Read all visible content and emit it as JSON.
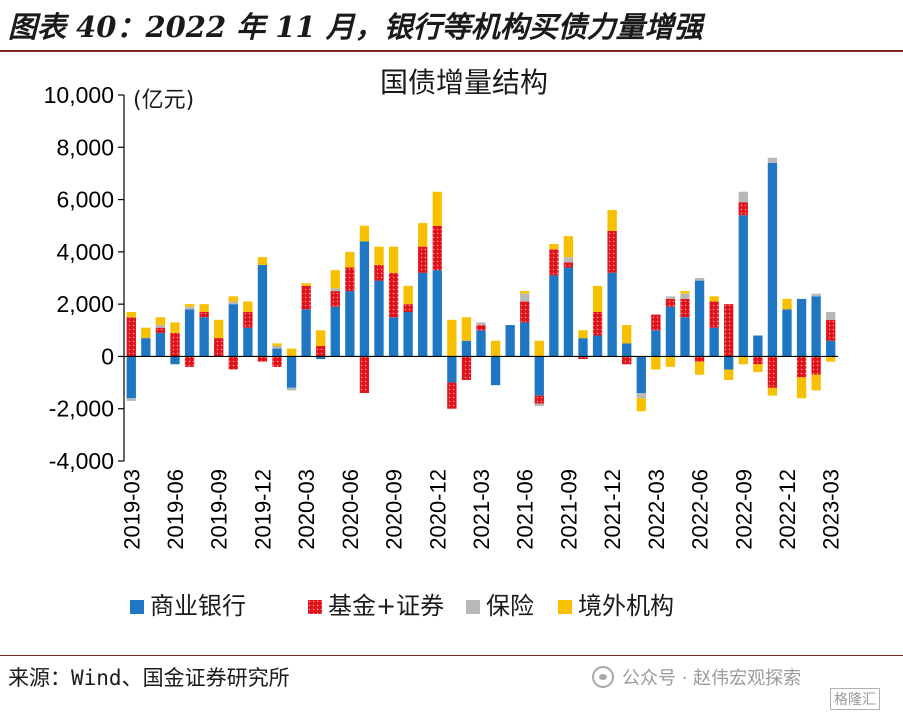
{
  "header": {
    "title": "图表 40：2022 年 11 月，银行等机构买债力量增强"
  },
  "footer": {
    "source": "来源：Wind、国金证券研究所",
    "watermark": "公众号 · 赵伟宏观探索",
    "logo_text": "格隆汇"
  },
  "colors": {
    "bank": "#1f77c4",
    "fund": "#e2121b",
    "fund_dots": "#f4a9a9",
    "insurance": "#b8b8b8",
    "overseas": "#f7c000",
    "header_rule": "#7a2b2b"
  },
  "chart_data": {
    "type": "bar",
    "stacked": true,
    "title": "国债增量结构",
    "unit_label": "(亿元)",
    "ylim": [
      -4000,
      10000
    ],
    "yticks": [
      -4000,
      -2000,
      0,
      2000,
      4000,
      6000,
      8000,
      10000
    ],
    "ytick_labels": [
      "-4,000",
      "-2,000",
      "0",
      "2,000",
      "4,000",
      "6,000",
      "8,000",
      "10,000"
    ],
    "xtick_labels": [
      "2019-03",
      "2019-06",
      "2019-09",
      "2019-12",
      "2020-03",
      "2020-06",
      "2020-09",
      "2020-12",
      "2021-03",
      "2021-06",
      "2021-09",
      "2021-12",
      "2022-03",
      "2022-06",
      "2022-09",
      "2022-12",
      "2023-03"
    ],
    "legend_position": "bottom",
    "grid": false,
    "categories": [
      "2019-03",
      "2019-04",
      "2019-05",
      "2019-06",
      "2019-07",
      "2019-08",
      "2019-09",
      "2019-10",
      "2019-11",
      "2019-12",
      "2020-01",
      "2020-02",
      "2020-03",
      "2020-04",
      "2020-05",
      "2020-06",
      "2020-07",
      "2020-08",
      "2020-09",
      "2020-10",
      "2020-11",
      "2020-12",
      "2021-01",
      "2021-02",
      "2021-03",
      "2021-04",
      "2021-05",
      "2021-06",
      "2021-07",
      "2021-08",
      "2021-09",
      "2021-10",
      "2021-11",
      "2021-12",
      "2022-01",
      "2022-02",
      "2022-03",
      "2022-04",
      "2022-05",
      "2022-06",
      "2022-07",
      "2022-08",
      "2022-09",
      "2022-10",
      "2022-11",
      "2022-12",
      "2023-01",
      "2023-02",
      "2023-03"
    ],
    "series": [
      {
        "name": "商业银行",
        "values": [
          -1600,
          700,
          900,
          -300,
          1800,
          1500,
          0,
          2000,
          1100,
          3500,
          300,
          -1200,
          1800,
          -100,
          1900,
          2500,
          4400,
          2900,
          1500,
          1700,
          3200,
          3300,
          -1000,
          600,
          1000,
          -1100,
          1200,
          1300,
          -1500,
          3100,
          3400,
          700,
          800,
          3200,
          500,
          -1400,
          1000,
          1900,
          1500,
          2900,
          1100,
          -500,
          5400,
          800,
          7400,
          1800,
          2200,
          2300,
          600
        ]
      },
      {
        "name": "基金+证券",
        "values": [
          1500,
          0,
          200,
          900,
          -400,
          200,
          700,
          -500,
          600,
          -200,
          -400,
          0,
          900,
          400,
          600,
          900,
          -1400,
          600,
          1700,
          300,
          1000,
          1700,
          -1000,
          -900,
          200,
          0,
          0,
          800,
          -300,
          1000,
          200,
          -100,
          900,
          1600,
          -300,
          0,
          600,
          300,
          700,
          -200,
          1000,
          2000,
          500,
          -300,
          -1200,
          0,
          -800,
          -700,
          800
        ]
      },
      {
        "name": "保险",
        "values": [
          -100,
          0,
          100,
          0,
          100,
          0,
          0,
          100,
          0,
          0,
          100,
          -100,
          0,
          0,
          100,
          0,
          0,
          0,
          0,
          0,
          0,
          0,
          0,
          0,
          100,
          0,
          0,
          300,
          -100,
          0,
          200,
          0,
          0,
          0,
          0,
          -200,
          0,
          100,
          200,
          100,
          0,
          0,
          400,
          0,
          200,
          0,
          0,
          100,
          300
        ]
      },
      {
        "name": "境外机构",
        "values": [
          200,
          400,
          300,
          400,
          100,
          300,
          700,
          200,
          400,
          300,
          100,
          300,
          100,
          600,
          700,
          600,
          600,
          700,
          1000,
          700,
          900,
          1300,
          1400,
          900,
          0,
          600,
          0,
          100,
          600,
          200,
          800,
          300,
          1000,
          800,
          700,
          -500,
          -500,
          -400,
          100,
          -500,
          200,
          -400,
          -300,
          -300,
          -300,
          400,
          -800,
          -600,
          -200
        ]
      }
    ]
  }
}
